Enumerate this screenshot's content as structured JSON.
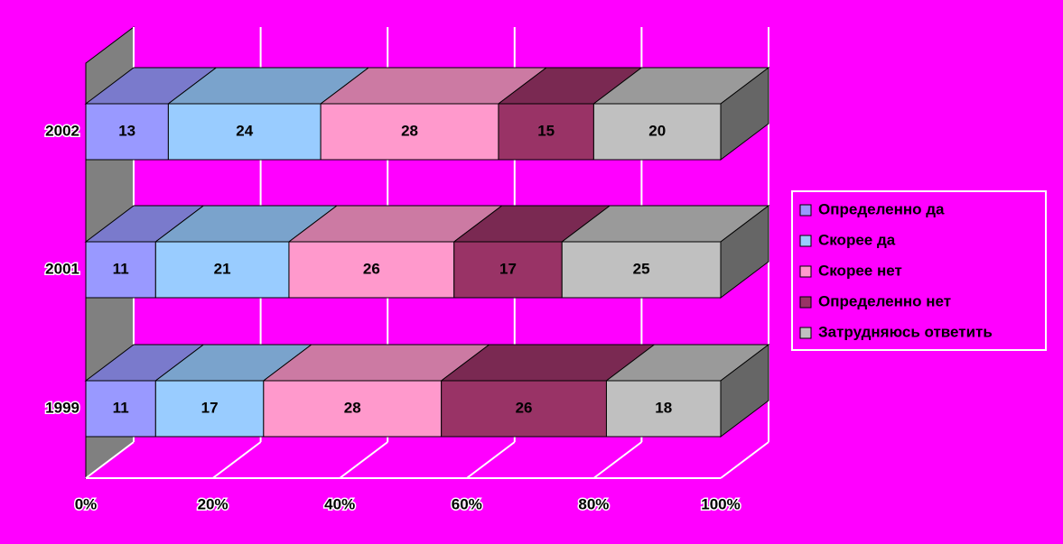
{
  "chart_data": {
    "type": "bar3d_stacked_horizontal",
    "categories": [
      "2002",
      "2001",
      "1999"
    ],
    "series": [
      {
        "name": "Определенно да",
        "color": "#9999ff",
        "values": [
          13,
          11,
          11
        ]
      },
      {
        "name": "Скорее да",
        "color": "#99ccff",
        "values": [
          24,
          21,
          17
        ]
      },
      {
        "name": "Скорее нет",
        "color": "#ff99cc",
        "values": [
          28,
          26,
          28
        ]
      },
      {
        "name": "Определенно нет",
        "color": "#993366",
        "values": [
          15,
          17,
          26
        ]
      },
      {
        "name": "Затрудняюсь ответить",
        "color": "#c0c0c0",
        "values": [
          20,
          25,
          18
        ]
      }
    ],
    "xlim": [
      0,
      100
    ],
    "xticks": [
      {
        "value": 0,
        "label": "0%"
      },
      {
        "value": 20,
        "label": "20%"
      },
      {
        "value": 40,
        "label": "40%"
      },
      {
        "value": 60,
        "label": "60%"
      },
      {
        "value": 80,
        "label": "80%"
      },
      {
        "value": 100,
        "label": "100%"
      }
    ],
    "grid": true,
    "legend": "right"
  }
}
